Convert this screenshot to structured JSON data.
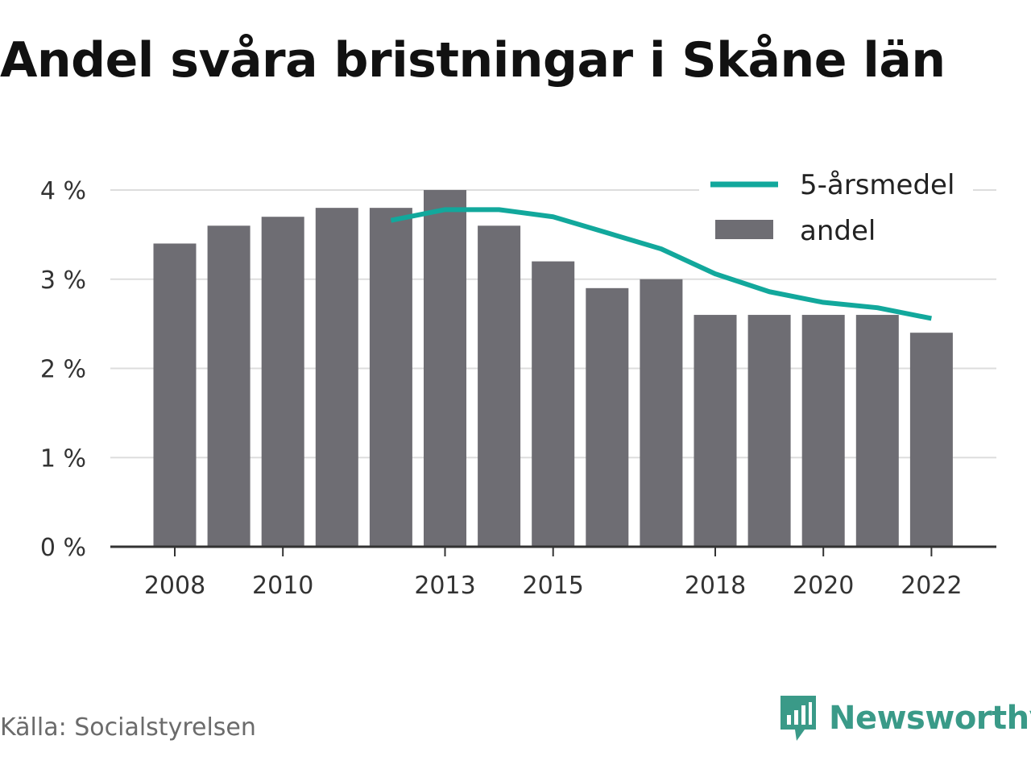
{
  "title": "Andel svåra bristningar i Skåne län",
  "source": "Källa: Socialstyrelsen",
  "brand": {
    "name": "Newsworthy",
    "icon": "newsworthy-logo-icon",
    "color": "#3a9a88"
  },
  "colors": {
    "bar": "#6e6d73",
    "line": "#12a89c",
    "grid": "#dddddd",
    "axis": "#333333"
  },
  "chart_data": {
    "type": "bar",
    "x": [
      2008,
      2009,
      2010,
      2011,
      2012,
      2013,
      2014,
      2015,
      2016,
      2017,
      2018,
      2019,
      2020,
      2021,
      2022
    ],
    "ylim": [
      0,
      4
    ],
    "yticks": [
      0,
      1,
      2,
      3,
      4
    ],
    "ytick_labels": [
      "0 %",
      "1 %",
      "2 %",
      "3 %",
      "4 %"
    ],
    "xtick_labels": [
      "2008",
      "2010",
      "2013",
      "2015",
      "2018",
      "2020",
      "2022"
    ],
    "grid": true,
    "legend_position": "top-right",
    "series": [
      {
        "name": "andel",
        "kind": "bar",
        "values": [
          3.4,
          3.6,
          3.7,
          3.8,
          3.8,
          4.0,
          3.6,
          3.2,
          2.9,
          3.0,
          2.6,
          2.6,
          2.6,
          2.6,
          2.4
        ]
      },
      {
        "name": "5-årsmedel",
        "kind": "line",
        "values": [
          null,
          null,
          null,
          null,
          3.66,
          3.78,
          3.78,
          3.7,
          3.52,
          3.34,
          3.06,
          2.86,
          2.74,
          2.68,
          2.56
        ]
      }
    ]
  }
}
